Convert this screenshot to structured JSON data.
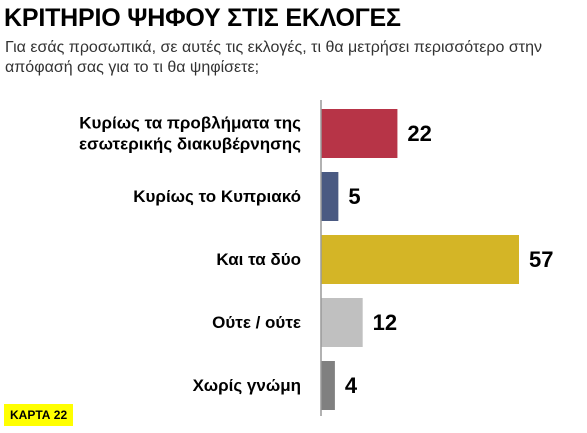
{
  "header": {
    "title": "ΚΡΙΤΗΡΙΟ ΨΗΦΟΥ ΣΤΙΣ ΕΚΛΟΓΕΣ",
    "subtitle": "Για εσάς προσωπικά, σε αυτές τις εκλογές, τι θα μετρήσει περισσότερο στην απόφασή σας για το τι θα ψηφίσετε;"
  },
  "badge": {
    "label": "ΚΑΡΤΑ 22",
    "color": "#ffff00"
  },
  "chart_data": {
    "type": "bar",
    "orientation": "horizontal",
    "categories": [
      [
        "Κυρίως τα προβλήματα της",
        "εσωτερικής διακυβέρνησης"
      ],
      [
        "Κυρίως το Κυπριακό"
      ],
      [
        "Και τα δύο"
      ],
      [
        "Ούτε / ούτε"
      ],
      [
        "Χωρίς γνώμη"
      ]
    ],
    "values": [
      22,
      5,
      57,
      12,
      4
    ],
    "colors": [
      "#b73447",
      "#4a5a82",
      "#d4b526",
      "#c0c0c0",
      "#808080"
    ],
    "xlim": [
      0,
      57
    ],
    "grid": false,
    "legend": "none",
    "axis_color": "#999999"
  }
}
